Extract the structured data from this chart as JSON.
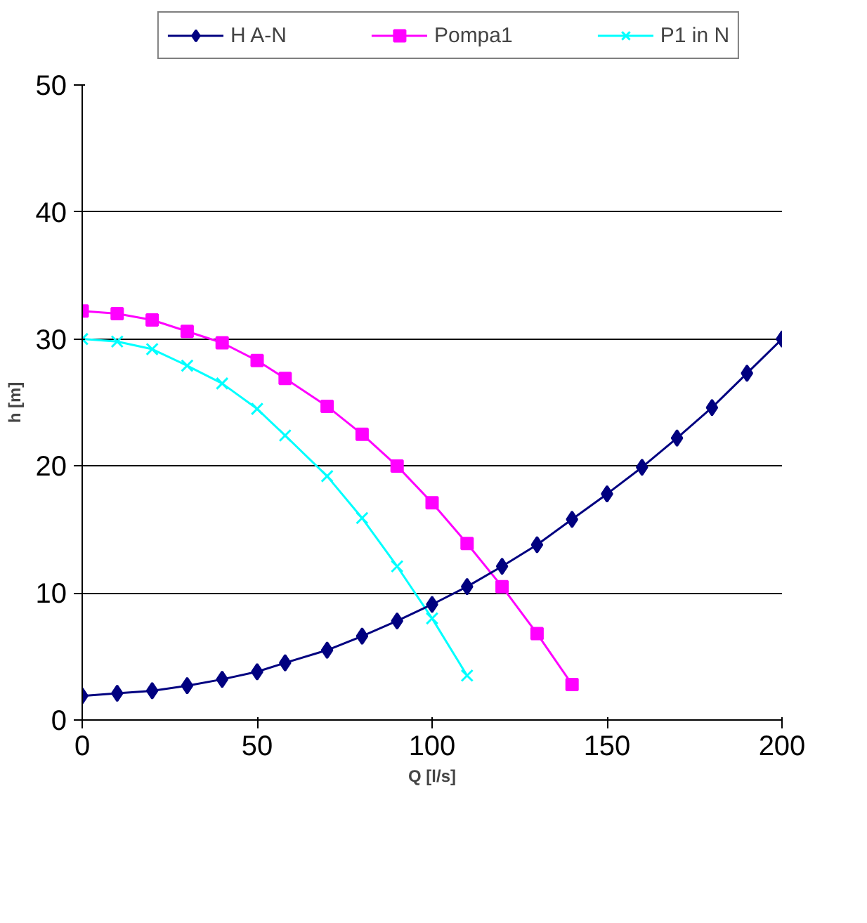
{
  "chart_data": {
    "type": "line",
    "xlabel": "Q [l/s]",
    "ylabel": "h [m]",
    "xlim": [
      0,
      200
    ],
    "ylim": [
      0,
      50
    ],
    "xticks": [
      0,
      50,
      100,
      150,
      200
    ],
    "yticks": [
      0,
      10,
      20,
      30,
      40,
      50
    ],
    "grid": "y",
    "legend": "top",
    "series": [
      {
        "name": "H A-N",
        "color": "#000080",
        "marker": "diamond",
        "x": [
          0,
          10,
          20,
          30,
          40,
          50,
          58,
          70,
          80,
          90,
          100,
          110,
          120,
          130,
          140,
          150,
          160,
          170,
          180,
          190,
          200
        ],
        "values": [
          1.9,
          2.1,
          2.3,
          2.7,
          3.2,
          3.8,
          4.5,
          5.5,
          6.6,
          7.8,
          9.1,
          10.5,
          12.1,
          13.8,
          15.8,
          17.8,
          19.9,
          22.2,
          24.6,
          27.3,
          30
        ]
      },
      {
        "name": "Pompa1",
        "color": "#ff00ff",
        "marker": "square",
        "x": [
          0,
          10,
          20,
          30,
          40,
          50,
          58,
          70,
          80,
          90,
          100,
          110,
          120,
          130,
          140
        ],
        "values": [
          32.2,
          32.0,
          31.5,
          30.6,
          29.7,
          28.3,
          26.9,
          24.7,
          22.5,
          20.0,
          17.1,
          13.9,
          10.5,
          6.8,
          2.8
        ]
      },
      {
        "name": "P1 in N",
        "color": "#00ffff",
        "marker": "cross",
        "x": [
          0,
          10,
          20,
          30,
          40,
          50,
          58,
          70,
          80,
          90,
          100,
          110
        ],
        "values": [
          30,
          29.8,
          29.2,
          27.9,
          26.5,
          24.5,
          22.4,
          19.2,
          15.9,
          12.1,
          8.0,
          3.5
        ]
      }
    ]
  }
}
